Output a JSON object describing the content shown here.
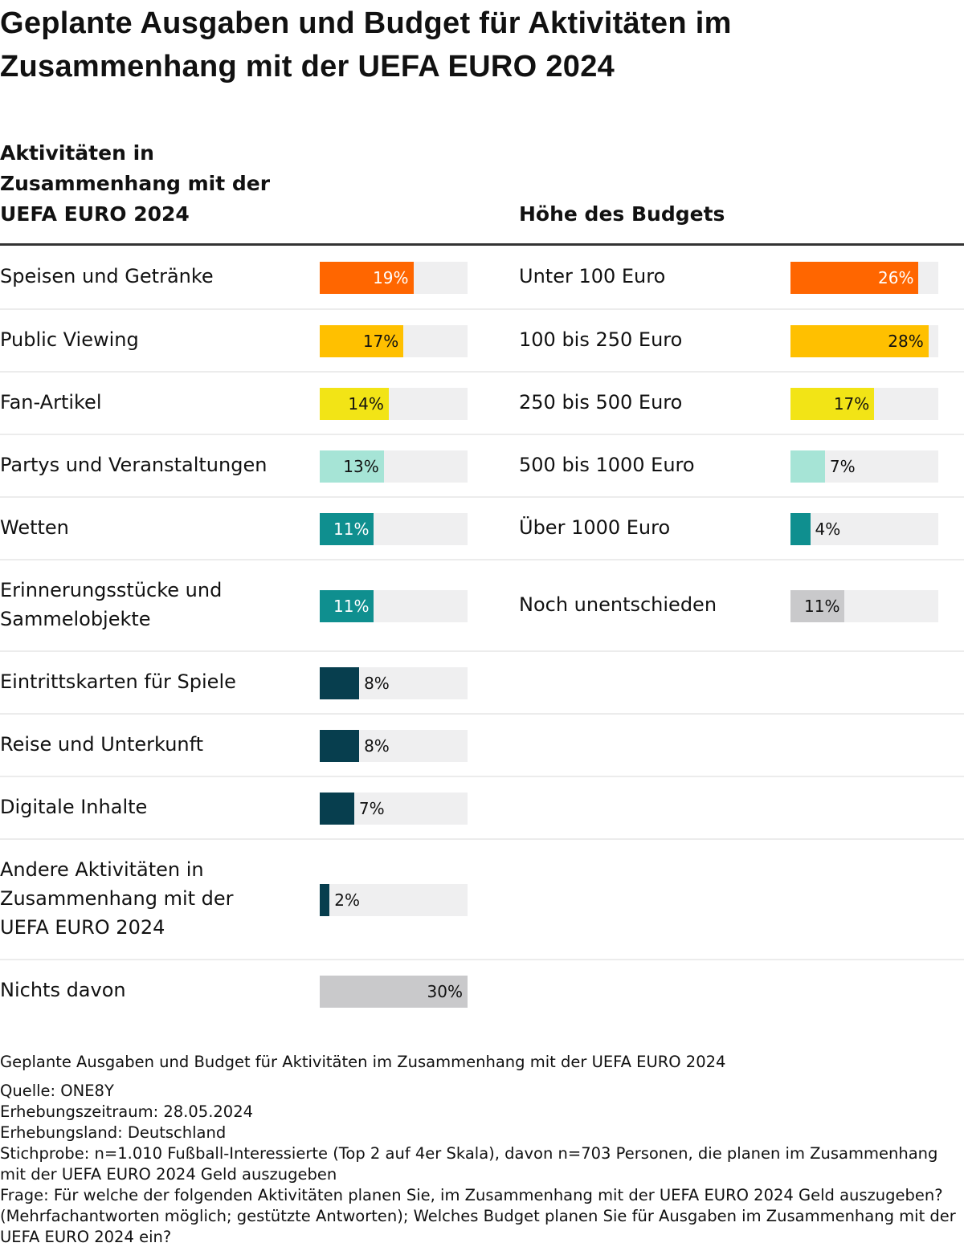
{
  "title": "Geplante Ausgaben und Budget für Aktivitäten im Zusammenhang mit der UEFA EURO 2024",
  "chart_data": [
    {
      "type": "bar",
      "orientation": "horizontal",
      "title": "Aktivitäten in Zusammenhang mit der UEFA EURO 2024",
      "xlim": [
        0,
        30
      ],
      "unit": "%",
      "categories": [
        "Speisen und Getränke",
        "Public Viewing",
        "Fan-Artikel",
        "Partys und Veranstaltungen",
        "Wetten",
        "Erinnerungsstücke und Sammelobjekte",
        "Eintrittskarten für Spiele",
        "Reise und Unterkunft",
        "Digitale Inhalte",
        "Andere Aktivitäten in Zusammenhang mit der UEFA EURO 2024",
        "Nichts davon"
      ],
      "values": [
        19,
        17,
        14,
        13,
        11,
        11,
        8,
        8,
        7,
        2,
        30
      ],
      "labels": [
        "19%",
        "17%",
        "14%",
        "13%",
        "11%",
        "11%",
        "8%",
        "8%",
        "7%",
        "2%",
        "30%"
      ],
      "colors": [
        "#ff6600",
        "#ffc000",
        "#f2e416",
        "#a6e4d6",
        "#0f8f8f",
        "#0f8f8f",
        "#073e4e",
        "#073e4e",
        "#073e4e",
        "#073e4e",
        "#c9c9cb"
      ],
      "label_colors": [
        "#ffffff",
        "#111111",
        "#111111",
        "#111111",
        "#ffffff",
        "#ffffff",
        "#111111",
        "#111111",
        "#111111",
        "#111111",
        "#111111"
      ]
    },
    {
      "type": "bar",
      "orientation": "horizontal",
      "title": "Höhe des Budgets",
      "xlim": [
        0,
        30
      ],
      "unit": "%",
      "categories": [
        "Unter 100 Euro",
        "100 bis 250 Euro",
        "250 bis 500 Euro",
        "500 bis 1000 Euro",
        "Über 1000 Euro",
        "Noch unentschieden"
      ],
      "values": [
        26,
        28,
        17,
        7,
        4,
        11
      ],
      "labels": [
        "26%",
        "28%",
        "17%",
        "7%",
        "4%",
        "11%"
      ],
      "colors": [
        "#ff6600",
        "#ffc000",
        "#f2e416",
        "#a6e4d6",
        "#0f8f8f",
        "#c9c9cb"
      ],
      "label_colors": [
        "#ffffff",
        "#111111",
        "#111111",
        "#111111",
        "#111111",
        "#111111"
      ]
    }
  ],
  "headers": {
    "left_lines": [
      "Aktivitäten in",
      "Zusammenhang mit der",
      "UEFA EURO 2024"
    ],
    "right": "Höhe des Budgets"
  },
  "footer": {
    "caption": "Geplante Ausgaben und Budget für Aktivitäten im Zusammenhang mit der UEFA EURO 2024",
    "source": "Quelle: ONE8Y",
    "period": "Erhebungszeitraum: 28.05.2024",
    "country": "Erhebungsland: Deutschland",
    "sample": "Stichprobe: n=1.010 Fußball-Interessierte (Top 2 auf 4er Skala), davon n=703 Personen, die planen im Zusammenhang mit der UEFA EURO 2024 Geld auszugeben",
    "question": "Frage: Für welche der folgenden Aktivitäten planen Sie, im Zusammenhang mit der UEFA EURO 2024 Geld auszugeben? (Mehrfachantworten möglich; gestützte Antworten); Welches Budget planen Sie für Ausgaben im Zusammenhang mit der UEFA EURO 2024 ein?"
  }
}
